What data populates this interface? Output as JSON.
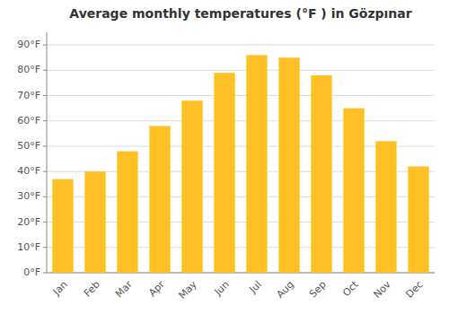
{
  "chart_data": {
    "type": "bar",
    "title": "Average monthly temperatures (°F ) in Gözpınar",
    "categories": [
      "Jan",
      "Feb",
      "Mar",
      "Apr",
      "May",
      "Jun",
      "Jul",
      "Aug",
      "Sep",
      "Oct",
      "Nov",
      "Dec"
    ],
    "values": [
      37,
      40,
      48,
      58,
      68,
      79,
      86,
      85,
      78,
      65,
      52,
      42
    ],
    "color": "#FFC125",
    "ylim": [
      0,
      95
    ],
    "yticks": [
      {
        "value": 0,
        "label": "0°F"
      },
      {
        "value": 10,
        "label": "10°F"
      },
      {
        "value": 20,
        "label": "20°F"
      },
      {
        "value": 30,
        "label": "30°F"
      },
      {
        "value": 40,
        "label": "40°F"
      },
      {
        "value": 50,
        "label": "50°F"
      },
      {
        "value": 60,
        "label": "60°F"
      },
      {
        "value": 70,
        "label": "70°F"
      },
      {
        "value": 80,
        "label": "80°F"
      },
      {
        "value": 90,
        "label": "90°F"
      }
    ],
    "grid": true
  }
}
